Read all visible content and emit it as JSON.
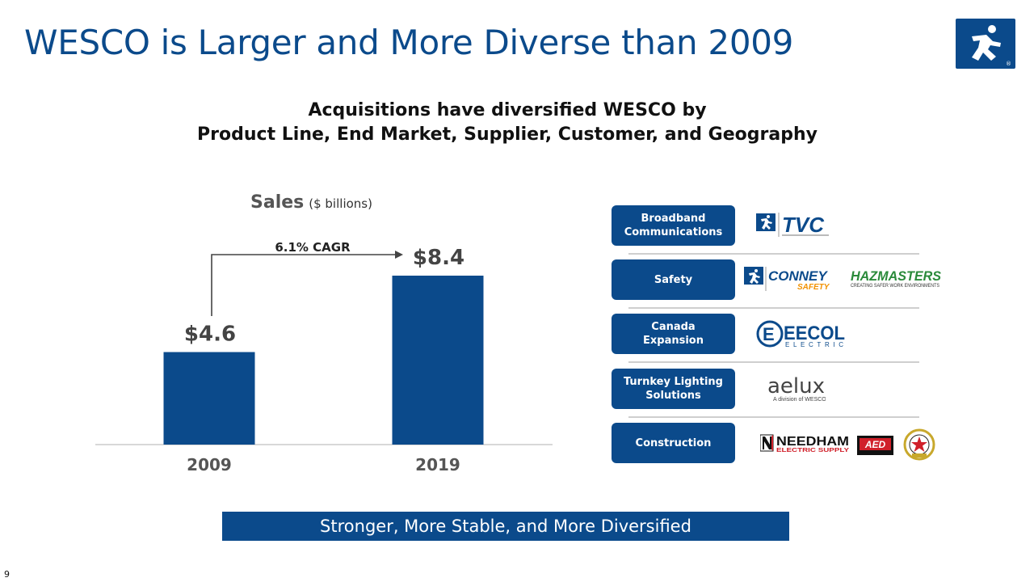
{
  "title": "WESCO is Larger and More Diverse than 2009",
  "subtitle_line1": "Acquisitions have diversified WESCO by",
  "subtitle_line2": "Product Line, End Market, Supplier, Customer, and Geography",
  "chart_data": {
    "type": "bar",
    "title": "Sales",
    "title_unit": "($ billions)",
    "categories": [
      "2009",
      "2019"
    ],
    "values": [
      4.6,
      8.4
    ],
    "data_labels": [
      "$4.6",
      "$8.4"
    ],
    "annotation": "6.1% CAGR",
    "ylim": [
      0,
      10
    ],
    "grid": false,
    "color": "#0b4a8b"
  },
  "categories": [
    {
      "label_lines": [
        "Broadband",
        "Communications"
      ],
      "logos": [
        "TVC"
      ]
    },
    {
      "label_lines": [
        "Safety"
      ],
      "logos": [
        "CONNEY SAFETY",
        "HAZMASTERS"
      ]
    },
    {
      "label_lines": [
        "Canada",
        "Expansion"
      ],
      "logos": [
        "EECOL ELECTRIC"
      ]
    },
    {
      "label_lines": [
        "Turnkey Lighting",
        "Solutions"
      ],
      "logos": [
        "aelux"
      ]
    },
    {
      "label_lines": [
        "Construction"
      ],
      "logos": [
        "NEEDHAM ELECTRIC SUPPLY",
        "AED",
        "HILL COUNTRY"
      ]
    }
  ],
  "logo_text": {
    "tvc": "TVC",
    "conney": "CONNEY",
    "conney_sub": "SAFETY",
    "hazmasters": "HAZMASTERS",
    "hazmasters_sub": "CREATING SAFER WORK ENVIRONMENTS",
    "eecol": "EECOL",
    "eecol_sub": "ELECTRIC",
    "aelux": "aelux",
    "aelux_sub": "A division of WESCO",
    "needham": "NEEDHAM",
    "needham_sub": "ELECTRIC SUPPLY",
    "aed": "AED"
  },
  "footer_banner": "Stronger, More Stable, and More Diversified",
  "page_number": "9",
  "colors": {
    "brand_blue": "#0b4a8b",
    "hazmasters_green": "#2a8a3a",
    "conney_orange": "#f29100",
    "aed_red": "#d0202a"
  }
}
